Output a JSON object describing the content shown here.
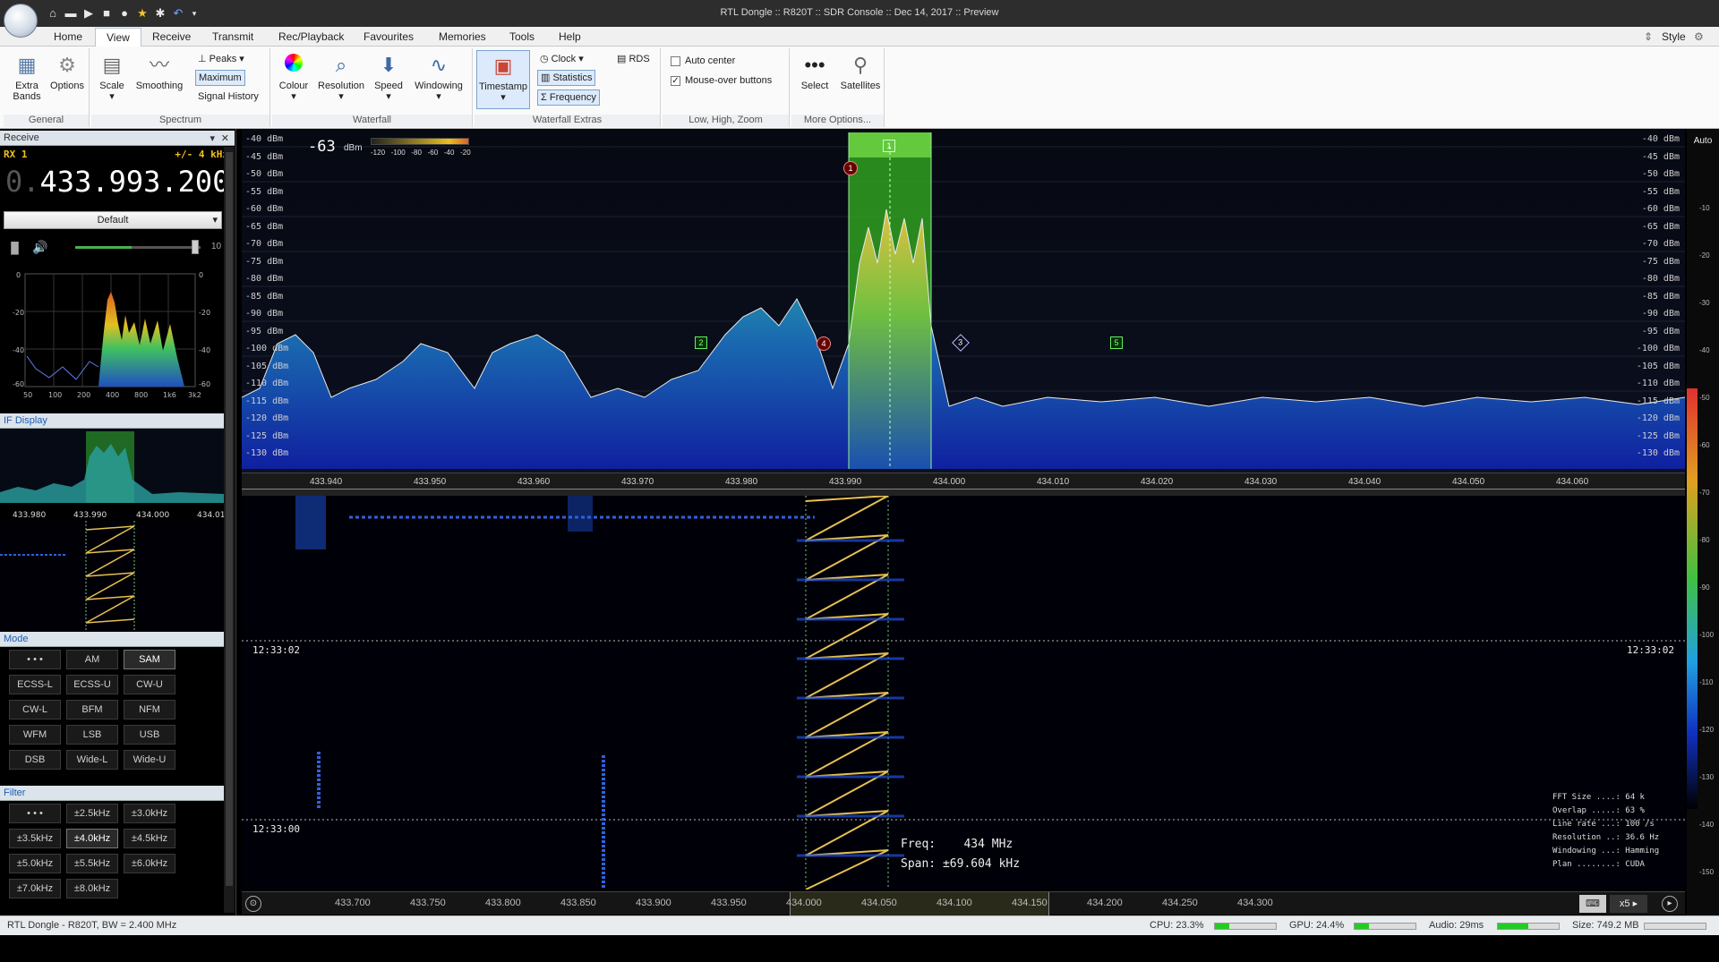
{
  "window": {
    "title": "RTL Dongle :: R820T :: SDR Console :: Dec 14, 2017 :: Preview"
  },
  "menu": [
    "Home",
    "View",
    "Receive",
    "Transmit",
    "Rec/Playback",
    "Favourites",
    "Memories",
    "Tools",
    "Help"
  ],
  "style_label": "Style",
  "ribbon": {
    "general": {
      "label": "General",
      "extra_bands": "Extra\nBands",
      "options": "Options"
    },
    "spectrum": {
      "label": "Spectrum",
      "scale": "Scale",
      "smoothing": "Smoothing",
      "peaks": "Peaks",
      "maximum": "Maximum",
      "signal_history": "Signal History"
    },
    "waterfall": {
      "label": "Waterfall",
      "colour": "Colour",
      "resolution": "Resolution",
      "speed": "Speed",
      "windowing": "Windowing"
    },
    "waterfall_extras": {
      "label": "Waterfall Extras",
      "timestamp": "Timestamp",
      "clock": "Clock",
      "statistics": "Statistics",
      "frequency": "Frequency",
      "rds": "RDS"
    },
    "zoom": {
      "label": "Low, High, Zoom",
      "auto_center": "Auto center",
      "mouse_over": "Mouse-over buttons"
    },
    "more": {
      "label": "More Options...",
      "select": "Select",
      "satellites": "Satellites"
    }
  },
  "receive": {
    "header": "Receive",
    "rx": "RX 1",
    "bw": "+/- 4 kHz",
    "freq_dim": "0.",
    "freq": "433.993.200",
    "preset": "Default",
    "volume_val": "10"
  },
  "audio_spectrum": {
    "ylabels": [
      "0",
      "-20",
      "-40",
      "-60"
    ],
    "xlabels": [
      "50",
      "100",
      "200",
      "400",
      "800",
      "1k6",
      "3k2"
    ]
  },
  "if_display": {
    "header": "IF Display",
    "flabels": [
      "433.980",
      "433.990",
      "434.000",
      "434.01"
    ]
  },
  "mode": {
    "header": "Mode",
    "buttons": [
      "• • •",
      "AM",
      "SAM",
      "ECSS-L",
      "ECSS-U",
      "CW-U",
      "CW-L",
      "BFM",
      "NFM",
      "WFM",
      "LSB",
      "USB",
      "DSB",
      "Wide-L",
      "Wide-U"
    ],
    "active": "SAM"
  },
  "filter": {
    "header": "Filter",
    "buttons": [
      "• • •",
      "±2.5kHz",
      "±3.0kHz",
      "±3.5kHz",
      "±4.0kHz",
      "±4.5kHz",
      "±5.0kHz",
      "±5.5kHz",
      "±6.0kHz",
      "±7.0kHz",
      "±8.0kHz"
    ],
    "active": "±4.0kHz"
  },
  "spectrum": {
    "level": "-63",
    "level_unit": "dBm",
    "scale_ticks": [
      "-120",
      "-100",
      "-80",
      "-60",
      "-40",
      "-20"
    ],
    "db_labels": [
      "-40 dBm",
      "-45 dBm",
      "-50 dBm",
      "-55 dBm",
      "-60 dBm",
      "-65 dBm",
      "-70 dBm",
      "-75 dBm",
      "-80 dBm",
      "-85 dBm",
      "-90 dBm",
      "-95 dBm",
      "-100 dBm",
      "-105 dBm",
      "-110 dBm",
      "-115 dBm",
      "-120 dBm",
      "-125 dBm",
      "-130 dBm"
    ],
    "freq_labels": [
      "433.940",
      "433.950",
      "433.960",
      "433.970",
      "433.980",
      "433.990",
      "434.000",
      "434.010",
      "434.020",
      "434.030",
      "434.040",
      "434.050",
      "434.060"
    ],
    "markers": [
      "1",
      "1",
      "2",
      "3",
      "4",
      "5"
    ]
  },
  "waterfall": {
    "timestamps": [
      "12:33:02",
      "12:33:00"
    ],
    "freq_label": "Freq:",
    "freq_val": "434 MHz",
    "span_label": "Span:",
    "span_val": "±69.604 kHz",
    "stats": [
      "FFT Size ....: 64 k",
      "Overlap .....: 63 %",
      "Line rate ...: 100 /s",
      "Resolution ..: 36.6 Hz",
      "Windowing ...: Hamming",
      "Plan ........: CUDA"
    ],
    "bottom_freqs": [
      "433.700",
      "433.750",
      "433.800",
      "433.850",
      "433.900",
      "433.950",
      "434.000",
      "434.050",
      "434.100",
      "434.150",
      "434.200",
      "434.250",
      "434.300"
    ],
    "zoom": "x5"
  },
  "colorbar": {
    "auto": "Auto",
    "ticks": [
      "-10",
      "-20",
      "-30",
      "-40",
      "-50",
      "-60",
      "-70",
      "-80",
      "-90",
      "-100",
      "-110",
      "-120",
      "-130",
      "-140",
      "-150"
    ]
  },
  "status": {
    "device": "RTL Dongle - R820T, BW = 2.400 MHz",
    "cpu": "CPU: 23.3%",
    "gpu": "GPU: 24.4%",
    "audio": "Audio: 29ms",
    "size": "Size: 749.2 MB"
  }
}
